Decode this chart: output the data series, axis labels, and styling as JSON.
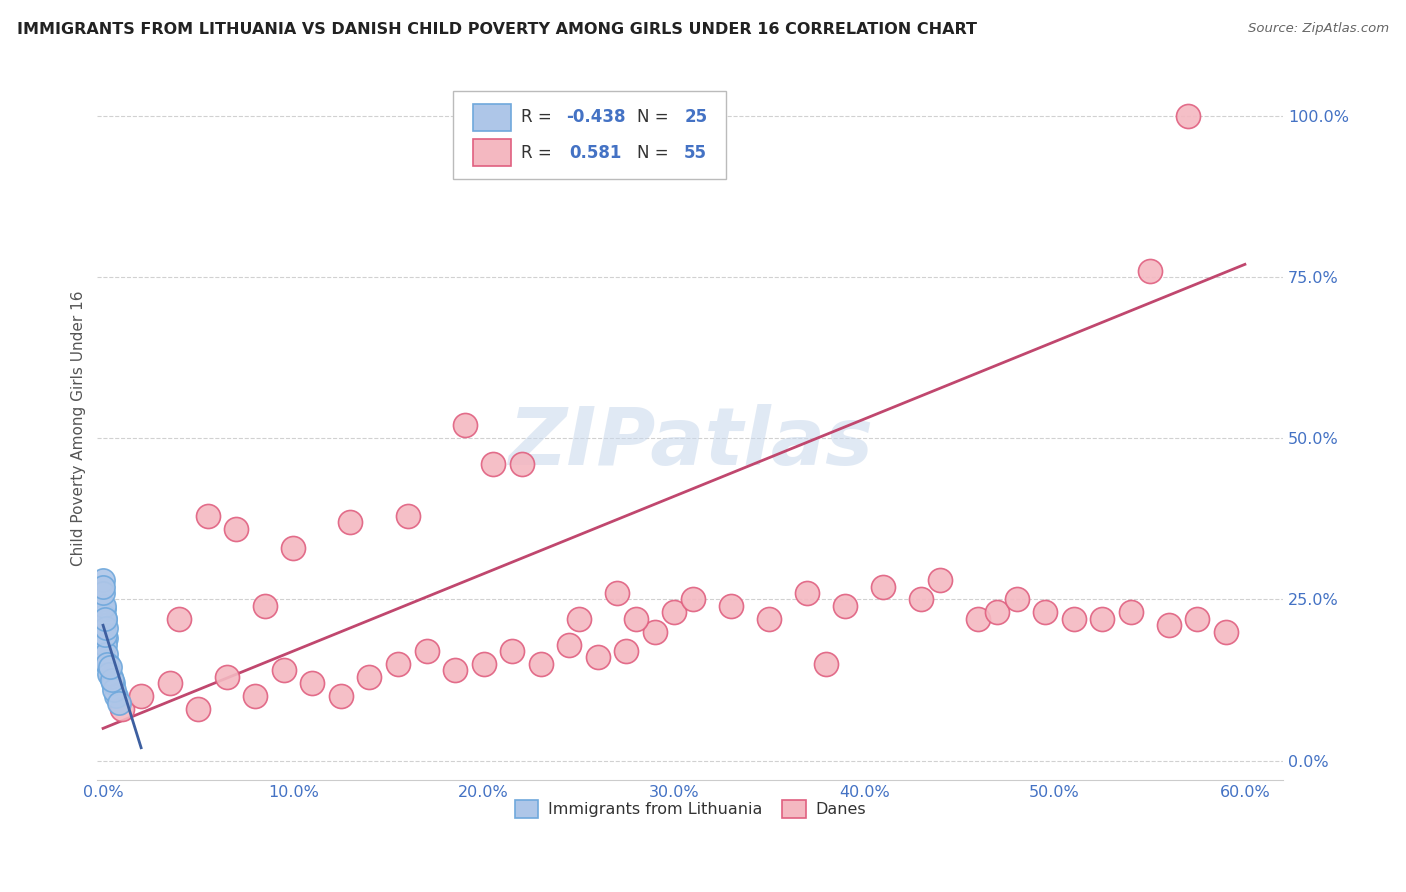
{
  "title": "IMMIGRANTS FROM LITHUANIA VS DANISH CHILD POVERTY AMONG GIRLS UNDER 16 CORRELATION CHART",
  "source": "Source: ZipAtlas.com",
  "ylabel": "Child Poverty Among Girls Under 16",
  "legend_label1": "Immigrants from Lithuania",
  "legend_label2": "Danes",
  "legend_r1": "-0.438",
  "legend_r2": "0.581",
  "legend_n1": "25",
  "legend_n2": "55",
  "color_blue_face": "#aec6e8",
  "color_blue_edge": "#6fa8dc",
  "color_pink_face": "#f4b8c1",
  "color_pink_edge": "#e06080",
  "color_blue_line": "#3d5fa0",
  "color_pink_line": "#c0476e",
  "watermark_color": "#c8d8ec",
  "tick_color": "#4472c4",
  "ylabel_color": "#555555",
  "title_color": "#222222",
  "source_color": "#666666",
  "grid_color": "#cccccc",
  "xlim": [
    -0.3,
    62
  ],
  "ylim": [
    -3,
    106
  ],
  "xticks": [
    0,
    10,
    20,
    30,
    40,
    50,
    60
  ],
  "yticks": [
    0,
    25,
    50,
    75,
    100
  ],
  "xtick_labels": [
    "0.0%",
    "10.0%",
    "20.0%",
    "30.0%",
    "40.0%",
    "50.0%",
    "60.0%"
  ],
  "ytick_labels": [
    "0.0%",
    "25.0%",
    "50.0%",
    "75.0%",
    "100.0%"
  ],
  "blue_x": [
    0.02,
    0.08,
    0.15,
    0.05,
    0.25,
    0.4,
    0.7,
    0.04,
    0.06,
    0.12,
    0.18,
    0.22,
    0.3,
    0.07,
    0.03,
    0.01,
    0.5,
    0.6,
    0.85,
    0.1,
    0.14,
    0.09,
    0.02,
    0.45,
    0.35
  ],
  "blue_y": [
    28.0,
    22.0,
    19.0,
    21.0,
    15.0,
    13.0,
    10.0,
    23.5,
    21.5,
    18.0,
    16.5,
    15.0,
    13.5,
    22.5,
    24.0,
    26.0,
    12.0,
    11.0,
    9.0,
    19.5,
    20.5,
    22.0,
    27.0,
    12.5,
    14.5
  ],
  "pink_x": [
    1.0,
    2.0,
    3.5,
    5.0,
    6.5,
    8.0,
    9.5,
    11.0,
    12.5,
    14.0,
    15.5,
    17.0,
    18.5,
    20.0,
    21.5,
    23.0,
    24.5,
    26.0,
    27.5,
    29.0,
    5.5,
    7.0,
    10.0,
    13.0,
    16.0,
    19.0,
    22.0,
    25.0,
    28.0,
    30.0,
    31.0,
    33.0,
    35.0,
    37.0,
    39.0,
    41.0,
    43.0,
    44.0,
    46.0,
    47.0,
    48.0,
    49.5,
    51.0,
    52.5,
    54.0,
    56.0,
    57.5,
    59.0,
    38.0,
    20.5,
    4.0,
    8.5,
    27.0,
    55.0,
    57.0
  ],
  "pink_y": [
    8.0,
    10.0,
    12.0,
    8.0,
    13.0,
    10.0,
    14.0,
    12.0,
    10.0,
    13.0,
    15.0,
    17.0,
    14.0,
    15.0,
    17.0,
    15.0,
    18.0,
    16.0,
    17.0,
    20.0,
    38.0,
    36.0,
    33.0,
    37.0,
    38.0,
    52.0,
    46.0,
    22.0,
    22.0,
    23.0,
    25.0,
    24.0,
    22.0,
    26.0,
    24.0,
    27.0,
    25.0,
    28.0,
    22.0,
    23.0,
    25.0,
    23.0,
    22.0,
    22.0,
    23.0,
    21.0,
    22.0,
    20.0,
    15.0,
    46.0,
    22.0,
    24.0,
    26.0,
    76.0,
    100.0
  ],
  "pink_line_x0": 0.0,
  "pink_line_y0": 5.0,
  "pink_line_x1": 60.0,
  "pink_line_y1": 77.0,
  "blue_line_x0": 0.0,
  "blue_line_y0": 21.0,
  "blue_line_x1": 2.0,
  "blue_line_y1": 2.0
}
